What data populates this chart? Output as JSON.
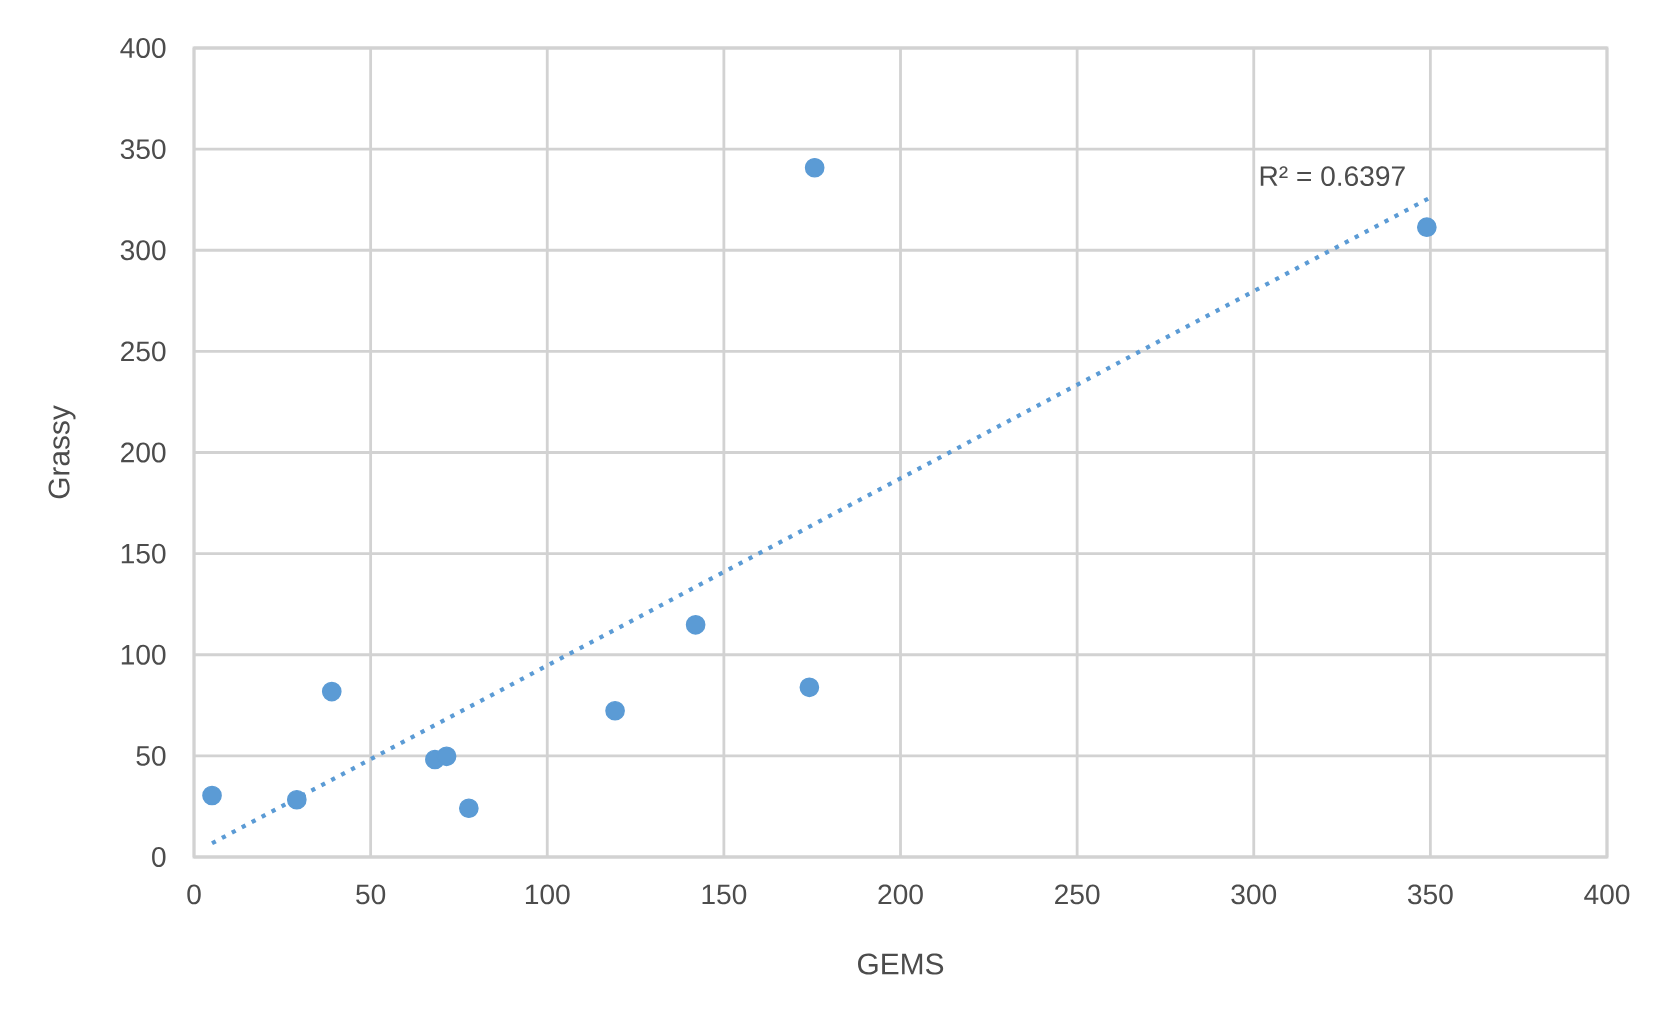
{
  "chart_data": {
    "type": "scatter",
    "xlabel": "GEMS",
    "ylabel": "Grassy",
    "xlim": [
      0,
      400
    ],
    "ylim": [
      0,
      400
    ],
    "xticks": [
      0,
      50,
      100,
      150,
      200,
      250,
      300,
      350,
      400
    ],
    "yticks": [
      0,
      50,
      100,
      150,
      200,
      250,
      300,
      350,
      400
    ],
    "grid": true,
    "marker": "circle",
    "series": [
      {
        "color": "#5b9bd5",
        "x": [
          5.1,
          29.1,
          39,
          68.2,
          71.5,
          77.8,
          119.2,
          142,
          174.2,
          175.7,
          349
        ],
        "values": [
          30.4,
          28.3,
          81.8,
          48.2,
          49.8,
          24.1,
          72.3,
          114.8,
          83.9,
          340.8,
          311.4
        ]
      },
      {
        "type": "line",
        "color": "#5b9bd5",
        "marker": "none",
        "line_style": "dotted",
        "x": [
          5.1,
          349.5
        ],
        "values": [
          6.8,
          325.6
        ]
      }
    ],
    "annotations": [
      {
        "text": "R² = 0.6397",
        "x": 349.5,
        "y": 325.6
      }
    ]
  }
}
